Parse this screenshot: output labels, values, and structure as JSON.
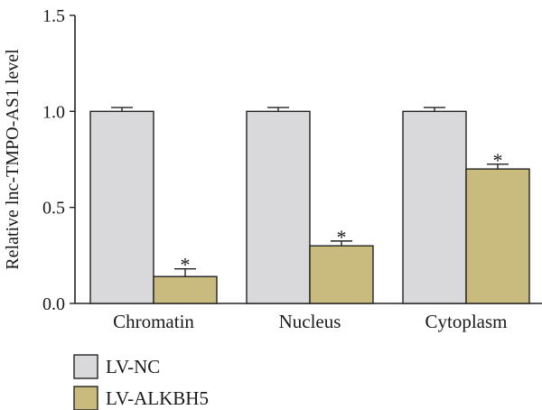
{
  "chart_data": {
    "type": "bar",
    "title": "",
    "xlabel": "",
    "ylabel": "Relative lnc-TMPO-AS1 level",
    "ylim": [
      0,
      1.5
    ],
    "yticks": [
      "0.0",
      "0.5",
      "1.0",
      "1.5"
    ],
    "yticks_values": [
      0,
      0.5,
      1.0,
      1.5
    ],
    "categories": [
      "Chromatin",
      "Nucleus",
      "Cytoplasm"
    ],
    "series": [
      {
        "name": "LV-NC",
        "color": "#d9d9db",
        "values": [
          1.0,
          1.0,
          1.0
        ],
        "errors": [
          0.02,
          0.02,
          0.02
        ],
        "markers": [
          "",
          "",
          ""
        ]
      },
      {
        "name": "LV-ALKBH5",
        "color": "#c9bb7e",
        "values": [
          0.14,
          0.3,
          0.7
        ],
        "errors": [
          0.04,
          0.025,
          0.025
        ],
        "markers": [
          "*",
          "*",
          "*"
        ]
      }
    ],
    "legend_position": "bottom-left",
    "grid": false
  }
}
